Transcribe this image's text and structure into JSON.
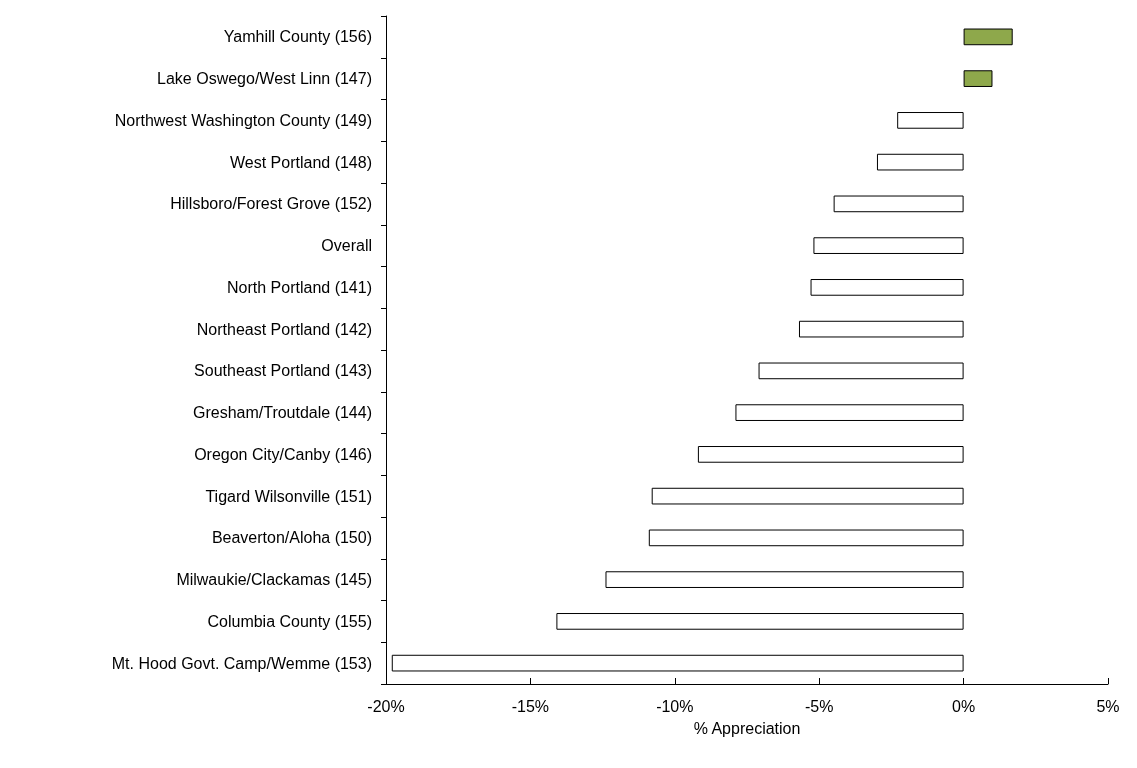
{
  "chart_data": {
    "type": "bar",
    "orientation": "horizontal",
    "xlabel": "% Appreciation",
    "categories": [
      "Yamhill County (156)",
      "Lake Oswego/West Linn (147)",
      "Northwest Washington County (149)",
      "West Portland (148)",
      "Hillsboro/Forest Grove (152)",
      "Overall",
      "North Portland (141)",
      "Northeast Portland (142)",
      "Southeast Portland (143)",
      "Gresham/Troutdale (144)",
      "Oregon City/Canby (146)",
      "Tigard Wilsonville (151)",
      "Beaverton/Aloha (150)",
      "Milwaukie/Clackamas (145)",
      "Columbia County (155)",
      "Mt. Hood Govt. Camp/Wemme (153)"
    ],
    "values": [
      1.7,
      1.0,
      -2.3,
      -3.0,
      -4.5,
      -5.2,
      -5.3,
      -5.7,
      -7.1,
      -7.9,
      -9.2,
      -10.8,
      -10.9,
      -12.4,
      -14.1,
      -19.8
    ],
    "colors": [
      "#8ea84b",
      "#8ea84b",
      "#ffffff",
      "#ffffff",
      "#ffffff",
      "#ffffff",
      "#ffffff",
      "#ffffff",
      "#ffffff",
      "#ffffff",
      "#ffffff",
      "#ffffff",
      "#ffffff",
      "#ffffff",
      "#ffffff",
      "#ffffff"
    ],
    "xlim": [
      -20,
      5
    ],
    "xticks": [
      {
        "value": -20,
        "label": "-20%"
      },
      {
        "value": -15,
        "label": "-15%"
      },
      {
        "value": -10,
        "label": "-10%"
      },
      {
        "value": -5,
        "label": "-5%"
      },
      {
        "value": 0,
        "label": "0%"
      },
      {
        "value": 5,
        "label": "5%"
      }
    ],
    "grid": false
  }
}
